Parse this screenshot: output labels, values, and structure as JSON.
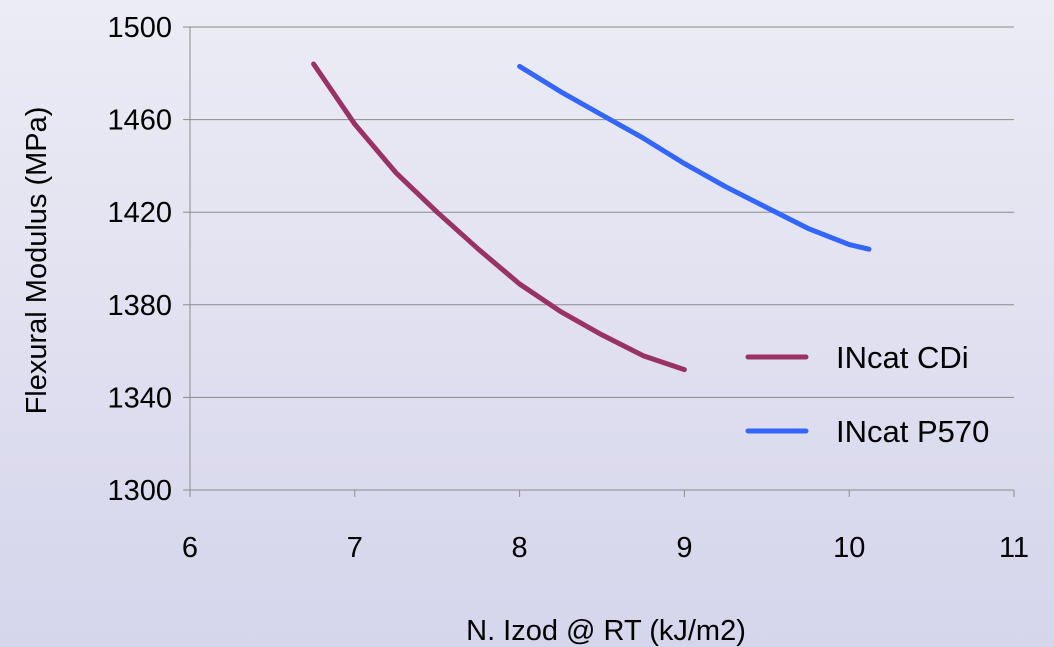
{
  "chart_data": {
    "type": "line",
    "title": "",
    "xlabel": "N. Izod @ RT (kJ/m2)",
    "ylabel": "Flexural Modulus (MPa)",
    "xlim": [
      6,
      11
    ],
    "ylim": [
      1300,
      1500
    ],
    "x_ticks": [
      "6",
      "7",
      "8",
      "9",
      "10",
      "11"
    ],
    "y_ticks": [
      "1300",
      "1340",
      "1380",
      "1420",
      "1460",
      "1500"
    ],
    "grid": "horizontal",
    "legend_position": "right",
    "series": [
      {
        "name": "INcat CDi",
        "color": "#993366",
        "x": [
          6.75,
          7.0,
          7.25,
          7.5,
          7.75,
          8.0,
          8.25,
          8.5,
          8.75,
          9.0
        ],
        "y": [
          1484,
          1458,
          1437,
          1420,
          1404,
          1389,
          1377,
          1367,
          1358,
          1352
        ]
      },
      {
        "name": "INcat P570",
        "color": "#3366ff",
        "x": [
          8.0,
          8.25,
          8.5,
          8.75,
          9.0,
          9.25,
          9.5,
          9.75,
          10.0,
          10.12
        ],
        "y": [
          1483,
          1472,
          1462,
          1452,
          1441,
          1431,
          1422,
          1413,
          1406,
          1404
        ]
      }
    ]
  }
}
